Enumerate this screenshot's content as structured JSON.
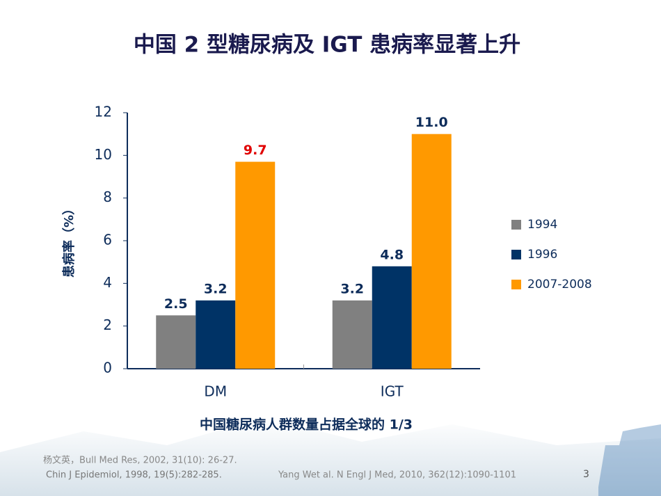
{
  "chart_data": {
    "type": "bar",
    "title": "中国 2 型糖尿病及 IGT 患病率显著上升",
    "y_label": "患病率（%）",
    "categories": [
      "DM",
      "IGT"
    ],
    "series": [
      {
        "name": "1994",
        "color": "#808080",
        "values": [
          2.5,
          3.2
        ],
        "value_labels": [
          "2.5",
          "3.2"
        ],
        "value_label_colors": [
          "#0d2c5a",
          "#0d2c5a"
        ]
      },
      {
        "name": "1996",
        "color": "#003366",
        "values": [
          3.2,
          4.8
        ],
        "value_labels": [
          "3.2",
          "4.8"
        ],
        "value_label_colors": [
          "#0d2c5a",
          "#0d2c5a"
        ]
      },
      {
        "name": "2007-2008",
        "color": "#ff9900",
        "values": [
          9.7,
          11
        ],
        "value_labels": [
          "9.7",
          "11.0"
        ],
        "value_label_colors": [
          "#e00000",
          "#0d2c5a"
        ]
      }
    ],
    "ylim": [
      0,
      12
    ],
    "yticks": [
      0,
      2,
      4,
      6,
      8,
      10,
      12
    ],
    "grid": false,
    "legend": "right",
    "note": "中国糖尿病人群数量占据全球的 1/3",
    "references": [
      "杨文英，Bull Med Res, 2002, 31(10): 26-27.",
      "Chin J Epidemiol, 1998, 19(5):282-285.",
      "Yang Wet al. N Engl J Med, 2010, 362(12):1090-1101"
    ],
    "page_number": "3"
  }
}
